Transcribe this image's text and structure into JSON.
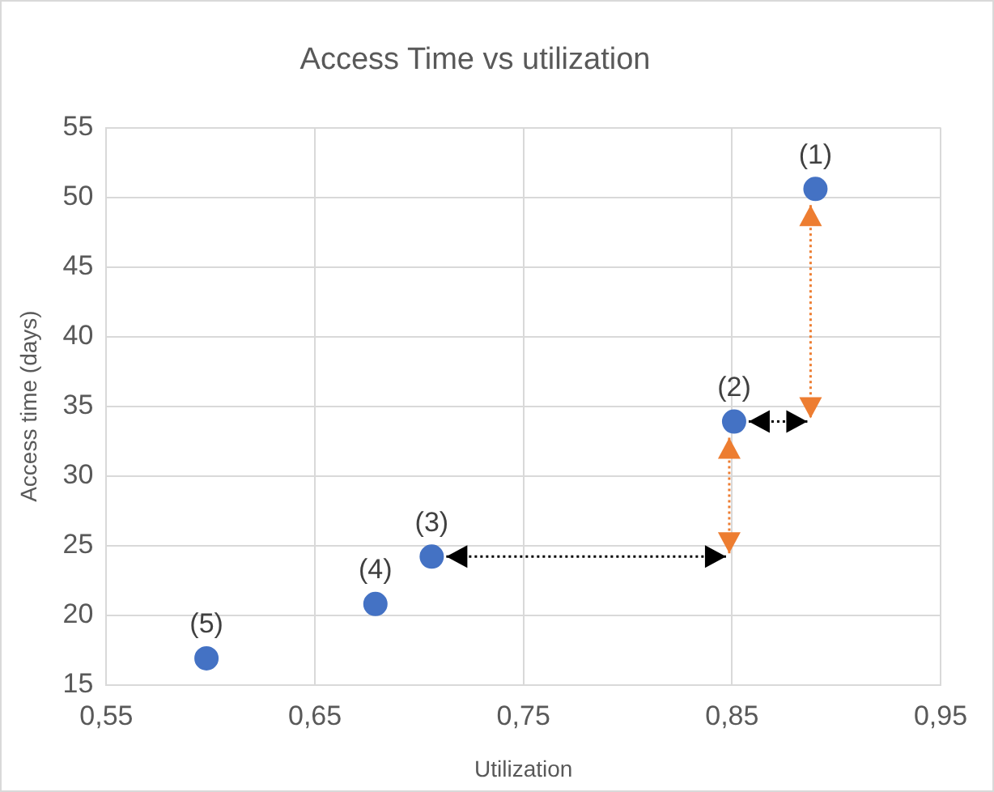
{
  "chart_data": {
    "type": "scatter",
    "title": "Access Time vs utilization",
    "xlabel": "Utilization",
    "ylabel": "Access time (days)",
    "x": [
      0.89,
      0.851,
      0.706,
      0.679,
      0.598
    ],
    "series": [
      {
        "color": "#4472c4",
        "values": [
          50.6,
          33.9,
          24.2,
          20.8,
          16.9
        ]
      }
    ],
    "xlim": [
      0.55,
      0.95
    ],
    "xticks": [
      {
        "value": 0.55,
        "label": "0,55"
      },
      {
        "value": 0.65,
        "label": "0,65"
      },
      {
        "value": 0.75,
        "label": "0,75"
      },
      {
        "value": 0.85,
        "label": "0,85"
      },
      {
        "value": 0.95,
        "label": "0,95"
      }
    ],
    "ylim": [
      15,
      55
    ],
    "yticks": [
      15,
      20,
      25,
      30,
      35,
      40,
      45,
      50,
      55
    ],
    "annotations": [
      {
        "text": "(1)",
        "x": 0.89,
        "y": 50.6
      },
      {
        "text": "(2)",
        "x": 0.851,
        "y": 33.9
      },
      {
        "text": "(3)",
        "x": 0.706,
        "y": 24.2
      },
      {
        "text": "(4)",
        "x": 0.679,
        "y": 20.8
      },
      {
        "text": "(5)",
        "x": 0.598,
        "y": 16.9
      }
    ],
    "grid": true,
    "legend": false,
    "marker": "circle"
  }
}
